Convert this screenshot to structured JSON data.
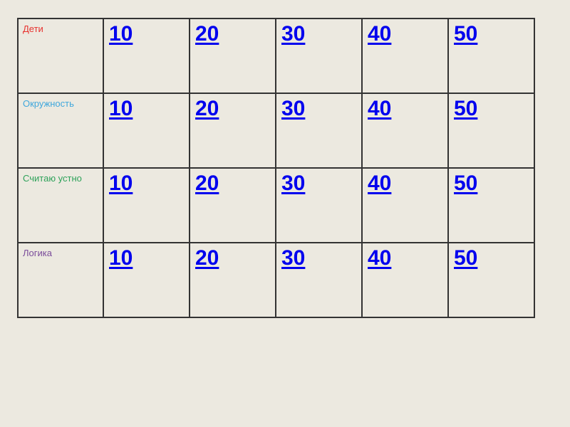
{
  "link_color": "#0000ee",
  "categories": [
    {
      "label": "Дети",
      "color": "#e8312e"
    },
    {
      "label": "Окружность",
      "color": "#3fa7dc"
    },
    {
      "label": "Считаю устно",
      "color": "#2ea25a"
    },
    {
      "label": "Логика",
      "color": "#7a4c9a"
    }
  ],
  "points": [
    "10",
    "20",
    "30",
    "40",
    "50"
  ]
}
